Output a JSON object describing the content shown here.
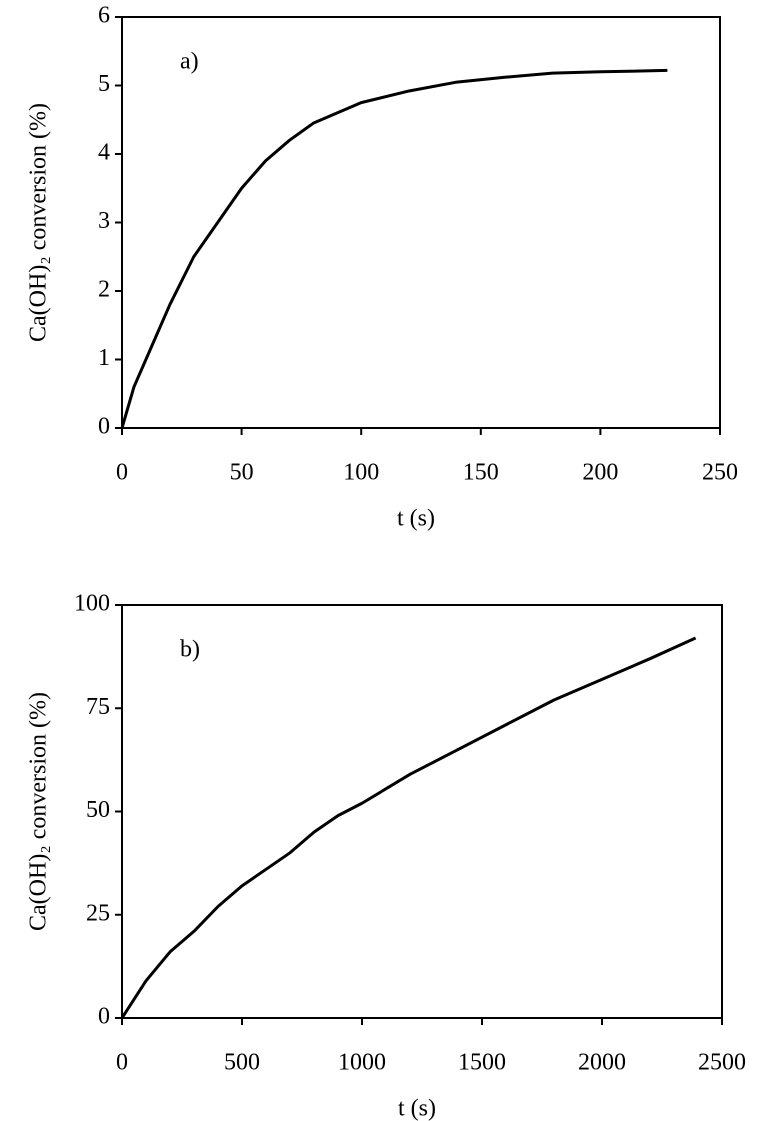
{
  "chart_data": [
    {
      "type": "line",
      "annotation": "a)",
      "xlabel": "t (s)",
      "ylabel": "Ca(OH)₂ conversion (%)",
      "xlim": [
        0,
        250
      ],
      "ylim": [
        0,
        6
      ],
      "xticks": [
        0,
        50,
        100,
        150,
        200,
        250
      ],
      "yticks": [
        0,
        1,
        2,
        3,
        4,
        5,
        6
      ],
      "x": [
        0,
        5,
        10,
        20,
        30,
        40,
        50,
        60,
        70,
        80,
        90,
        100,
        120,
        140,
        160,
        180,
        200,
        228
      ],
      "series": [
        {
          "color": "#000000",
          "values": [
            0,
            0.6,
            1.0,
            1.8,
            2.5,
            3.0,
            3.5,
            3.9,
            4.2,
            4.45,
            4.6,
            4.75,
            4.92,
            5.05,
            5.12,
            5.18,
            5.2,
            5.22
          ]
        }
      ]
    },
    {
      "type": "line",
      "annotation": "b)",
      "xlabel": "t (s)",
      "ylabel": "Ca(OH)₂ conversion (%)",
      "xlim": [
        0,
        2500
      ],
      "ylim": [
        0,
        100
      ],
      "xticks": [
        0,
        500,
        1000,
        1500,
        2000,
        2500
      ],
      "yticks": [
        0,
        25,
        50,
        75,
        100
      ],
      "x": [
        0,
        100,
        200,
        300,
        400,
        500,
        600,
        700,
        800,
        900,
        1000,
        1200,
        1400,
        1600,
        1800,
        2000,
        2200,
        2390
      ],
      "series": [
        {
          "color": "#000000",
          "values": [
            0,
            9,
            16,
            21,
            27,
            32,
            36,
            40,
            45,
            49,
            52,
            59,
            65,
            71,
            77,
            82,
            87,
            92
          ]
        }
      ]
    }
  ]
}
